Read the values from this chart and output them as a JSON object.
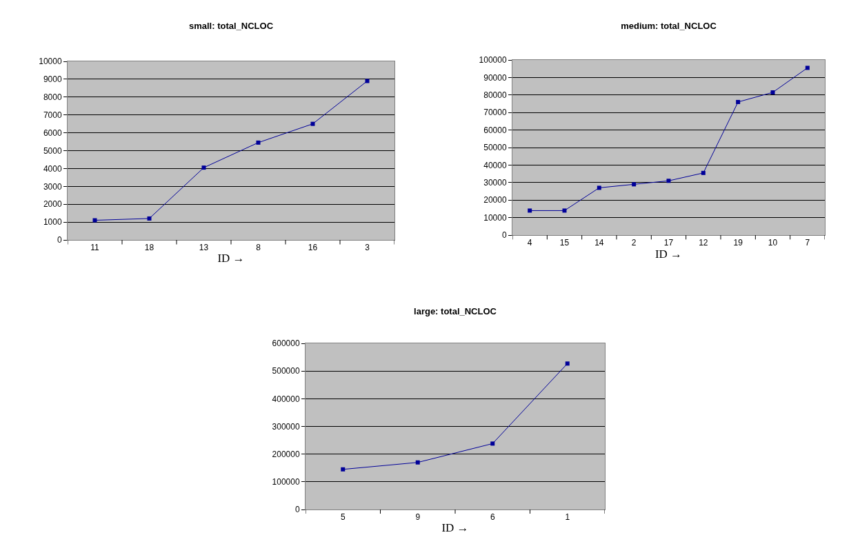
{
  "chart_data": [
    {
      "type": "line",
      "title": "small: total_NCLOC",
      "xlabel": "ID →",
      "categories": [
        "11",
        "18",
        "13",
        "8",
        "16",
        "3"
      ],
      "values": [
        1100,
        1200,
        4050,
        5450,
        6500,
        8900
      ],
      "color": "#000099",
      "ylim": [
        0,
        10000
      ],
      "yticks": [
        0,
        1000,
        2000,
        3000,
        4000,
        5000,
        6000,
        7000,
        8000,
        9000,
        10000
      ],
      "grid": "y",
      "marker": "square"
    },
    {
      "type": "line",
      "title": "medium: total_NCLOC",
      "xlabel": "ID →",
      "categories": [
        "4",
        "15",
        "14",
        "2",
        "17",
        "12",
        "19",
        "10",
        "7"
      ],
      "values": [
        14000,
        14000,
        27000,
        29000,
        31000,
        35500,
        76000,
        81500,
        95500
      ],
      "color": "#000099",
      "ylim": [
        0,
        100000
      ],
      "yticks": [
        0,
        10000,
        20000,
        30000,
        40000,
        50000,
        60000,
        70000,
        80000,
        90000,
        100000
      ],
      "grid": "y",
      "marker": "square"
    },
    {
      "type": "line",
      "title": "large: total_NCLOC",
      "xlabel": "ID →",
      "categories": [
        "5",
        "9",
        "6",
        "1"
      ],
      "values": [
        145000,
        170000,
        238000,
        527000
      ],
      "color": "#000099",
      "ylim": [
        0,
        600000
      ],
      "yticks": [
        0,
        100000,
        200000,
        300000,
        400000,
        500000,
        600000
      ],
      "grid": "y",
      "marker": "square"
    }
  ]
}
